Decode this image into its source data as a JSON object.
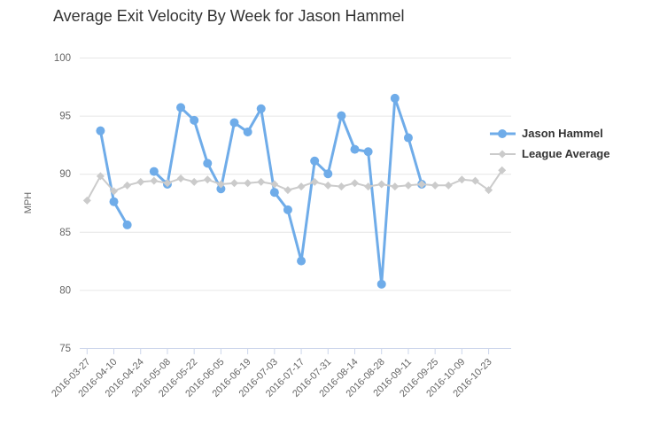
{
  "chart_data": {
    "type": "line",
    "title": "Average Exit Velocity By Week for Jason Hammel",
    "xlabel": "",
    "ylabel": "MPH",
    "ylim": [
      75,
      100
    ],
    "yticks": [
      75,
      80,
      85,
      90,
      95,
      100
    ],
    "grid": "horizontal",
    "legend_position": "right",
    "x": [
      "2016-03-27",
      "2016-04-03",
      "2016-04-10",
      "2016-04-17",
      "2016-04-24",
      "2016-05-01",
      "2016-05-08",
      "2016-05-15",
      "2016-05-22",
      "2016-05-29",
      "2016-06-05",
      "2016-06-12",
      "2016-06-19",
      "2016-06-26",
      "2016-07-03",
      "2016-07-10",
      "2016-07-17",
      "2016-07-24",
      "2016-07-31",
      "2016-08-07",
      "2016-08-14",
      "2016-08-21",
      "2016-08-28",
      "2016-09-04",
      "2016-09-11",
      "2016-09-18",
      "2016-09-25",
      "2016-10-02",
      "2016-10-09",
      "2016-10-16",
      "2016-10-23",
      "2016-10-30"
    ],
    "x_tick_labels": [
      "2016-03-27",
      "2016-04-10",
      "2016-04-24",
      "2016-05-08",
      "2016-05-22",
      "2016-06-05",
      "2016-06-19",
      "2016-07-03",
      "2016-07-17",
      "2016-07-31",
      "2016-08-14",
      "2016-08-28",
      "2016-09-11",
      "2016-09-25",
      "2016-10-09",
      "2016-10-23"
    ],
    "series": [
      {
        "name": "Jason Hammel",
        "color": "#6FACE9",
        "marker": "circle",
        "values": [
          null,
          93.7,
          87.6,
          85.6,
          null,
          90.2,
          89.1,
          95.7,
          94.6,
          90.9,
          88.7,
          94.4,
          93.6,
          95.6,
          88.4,
          86.9,
          82.5,
          91.1,
          90.0,
          95.0,
          92.1,
          91.9,
          80.5,
          96.5,
          93.1,
          89.1,
          null,
          null,
          null,
          null,
          null,
          null
        ]
      },
      {
        "name": "League Average",
        "color": "#CBCBCB",
        "marker": "diamond",
        "values": [
          87.7,
          89.8,
          88.5,
          89.0,
          89.3,
          89.4,
          89.2,
          89.6,
          89.3,
          89.5,
          89.1,
          89.2,
          89.2,
          89.3,
          89.1,
          88.6,
          88.9,
          89.3,
          89.0,
          88.9,
          89.2,
          88.9,
          89.1,
          88.9,
          89.0,
          89.1,
          89.0,
          89.0,
          89.5,
          89.4,
          88.6,
          90.3
        ]
      }
    ],
    "colors": {
      "grid_line": "#E6E6E6",
      "axis_line": "#CCD6EB",
      "axis_label": "#666666",
      "title_text": "#333333",
      "legend_text": "#333333",
      "background": "#FFFFFF"
    }
  }
}
